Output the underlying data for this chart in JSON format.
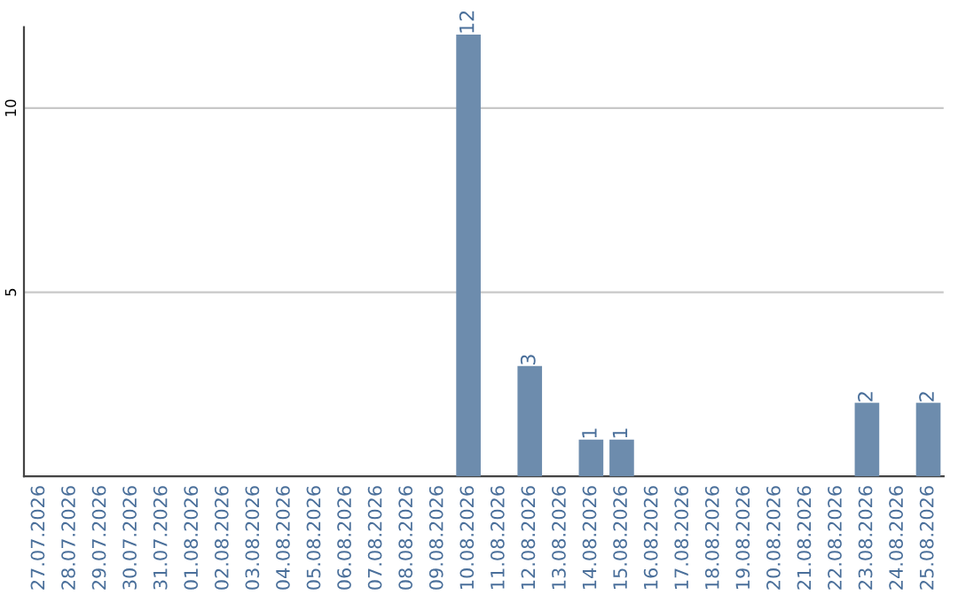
{
  "chart_data": {
    "type": "bar",
    "categories": [
      "27.07.2026",
      "28.07.2026",
      "29.07.2026",
      "30.07.2026",
      "31.07.2026",
      "01.08.2026",
      "02.08.2026",
      "03.08.2026",
      "04.08.2026",
      "05.08.2026",
      "06.08.2026",
      "07.08.2026",
      "08.08.2026",
      "09.08.2026",
      "10.08.2026",
      "11.08.2026",
      "12.08.2026",
      "13.08.2026",
      "14.08.2026",
      "15.08.2026",
      "16.08.2026",
      "17.08.2026",
      "18.08.2026",
      "19.08.2026",
      "20.08.2026",
      "21.08.2026",
      "22.08.2026",
      "23.08.2026",
      "24.08.2026",
      "25.08.2026"
    ],
    "values": [
      0,
      0,
      0,
      0,
      0,
      0,
      0,
      0,
      0,
      0,
      0,
      0,
      0,
      0,
      12,
      0,
      3,
      0,
      1,
      1,
      0,
      0,
      0,
      0,
      0,
      0,
      0,
      2,
      0,
      2
    ],
    "value_labels": [
      null,
      null,
      null,
      null,
      null,
      null,
      null,
      null,
      null,
      null,
      null,
      null,
      null,
      null,
      "12",
      null,
      "3",
      null,
      "1",
      "1",
      null,
      null,
      null,
      null,
      null,
      null,
      null,
      "2",
      null,
      "2"
    ],
    "color": "#6d8cad",
    "ylim": [
      0,
      12.2
    ],
    "yticks": [
      5,
      10
    ],
    "grid": "y",
    "legend": false
  }
}
